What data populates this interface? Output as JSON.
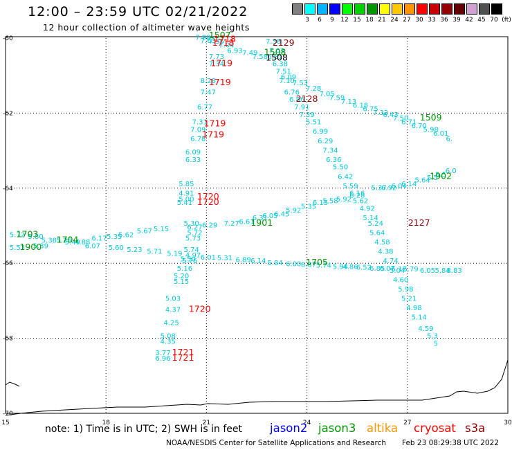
{
  "header": {
    "title": "12:00 – 23:59 UTC 02/21/2022",
    "subtitle": "12 hour collection of altimeter wave heights"
  },
  "legend": {
    "unit": "(ft)",
    "items": [
      {
        "label": "3",
        "color": "#808080"
      },
      {
        "label": "6",
        "color": "#00ffff"
      },
      {
        "label": "9",
        "color": "#00b4ff"
      },
      {
        "label": "12",
        "color": "#0000ff"
      },
      {
        "label": "15",
        "color": "#00ff00"
      },
      {
        "label": "18",
        "color": "#00d200"
      },
      {
        "label": "21",
        "color": "#009600"
      },
      {
        "label": "24",
        "color": "#ffff00"
      },
      {
        "label": "27",
        "color": "#ffc800"
      },
      {
        "label": "30",
        "color": "#ff9600"
      },
      {
        "label": "33",
        "color": "#ff0000"
      },
      {
        "label": "36",
        "color": "#c80000"
      },
      {
        "label": "39",
        "color": "#960000"
      },
      {
        "label": "42",
        "color": "#640000"
      },
      {
        "label": "45",
        "color": "#d2a0d2"
      },
      {
        "label": "70",
        "color": "#505050"
      },
      {
        "label": "",
        "color": "#000000"
      }
    ]
  },
  "map": {
    "lat_labels": [
      "-60",
      "-62",
      "-64",
      "-66",
      "-68",
      "-70"
    ],
    "lon_labels": [
      "15",
      "18",
      "21",
      "24",
      "27",
      "30"
    ],
    "wave_color": "#00c8dc",
    "lat_values": [
      -60,
      -62,
      -64,
      -66,
      -68,
      -70
    ],
    "lon_values": [
      15,
      18,
      21,
      24,
      27,
      30
    ]
  },
  "tracks": {
    "wave_labels": [
      {
        "t": "7.98",
        "lon": 20.9,
        "lat": -60.05
      },
      {
        "t": "7.63",
        "lon": 21.05,
        "lat": -60.13
      },
      {
        "t": "7.56",
        "lon": 21.3,
        "lat": -60.15
      },
      {
        "t": "7.04",
        "lon": 21.6,
        "lat": -60.25
      },
      {
        "t": "6.93",
        "lon": 21.85,
        "lat": -60.4
      },
      {
        "t": "7.49",
        "lon": 22.3,
        "lat": -60.45
      },
      {
        "t": "7.58",
        "lon": 22.6,
        "lat": -60.55
      },
      {
        "t": "7.73",
        "lon": 21.3,
        "lat": -60.55
      },
      {
        "t": "7.34",
        "lon": 21.3,
        "lat": -60.75
      },
      {
        "t": "8.28",
        "lon": 21.05,
        "lat": -61.2
      },
      {
        "t": "7.47",
        "lon": 21.05,
        "lat": -61.5
      },
      {
        "t": "6.77",
        "lon": 20.95,
        "lat": -61.9
      },
      {
        "t": "7.31",
        "lon": 20.8,
        "lat": -62.3
      },
      {
        "t": "7.09",
        "lon": 20.75,
        "lat": -62.5
      },
      {
        "t": "6.78",
        "lon": 20.75,
        "lat": -62.75
      },
      {
        "t": "6.09",
        "lon": 20.6,
        "lat": -63.1
      },
      {
        "t": "6.33",
        "lon": 20.6,
        "lat": -63.3
      },
      {
        "t": "7.38",
        "lon": 23.0,
        "lat": -60.15
      },
      {
        "t": "7.03",
        "lon": 23.1,
        "lat": -60.4
      },
      {
        "t": "6.81",
        "lon": 23.05,
        "lat": -60.55
      },
      {
        "t": "6.38",
        "lon": 23.2,
        "lat": -60.75
      },
      {
        "t": "7.51",
        "lon": 23.3,
        "lat": -60.95
      },
      {
        "t": "7.10",
        "lon": 23.4,
        "lat": -61.2
      },
      {
        "t": "6.76",
        "lon": 23.55,
        "lat": -61.5
      },
      {
        "t": "6.86",
        "lon": 23.7,
        "lat": -61.7
      },
      {
        "t": "7.91",
        "lon": 23.85,
        "lat": -61.9
      },
      {
        "t": "7.39",
        "lon": 24.0,
        "lat": -62.1
      },
      {
        "t": "5.51",
        "lon": 24.2,
        "lat": -62.3
      },
      {
        "t": "6.99",
        "lon": 24.4,
        "lat": -62.55
      },
      {
        "t": "6.29",
        "lon": 24.55,
        "lat": -62.8
      },
      {
        "t": "7.34",
        "lon": 24.7,
        "lat": -63.05
      },
      {
        "t": "6.36",
        "lon": 24.8,
        "lat": -63.3
      },
      {
        "t": "5.50",
        "lon": 25.0,
        "lat": -63.5
      },
      {
        "t": "6.42",
        "lon": 25.15,
        "lat": -63.75
      },
      {
        "t": "5.59",
        "lon": 25.3,
        "lat": -64.0
      },
      {
        "t": "6.16",
        "lon": 25.5,
        "lat": -64.2
      },
      {
        "t": "5.62",
        "lon": 25.6,
        "lat": -64.4
      },
      {
        "t": "4.92",
        "lon": 25.8,
        "lat": -64.6
      },
      {
        "t": "5.14",
        "lon": 25.9,
        "lat": -64.85
      },
      {
        "t": "5.24",
        "lon": 26.05,
        "lat": -65.0
      },
      {
        "t": "5.64",
        "lon": 26.1,
        "lat": -65.25
      },
      {
        "t": "4.58",
        "lon": 26.25,
        "lat": -65.5
      },
      {
        "t": "4.38",
        "lon": 26.35,
        "lat": -65.75
      },
      {
        "t": "4.74",
        "lon": 26.5,
        "lat": -66.0
      },
      {
        "t": "5.04",
        "lon": 26.7,
        "lat": -66.25
      },
      {
        "t": "4.60",
        "lon": 26.8,
        "lat": -66.5
      },
      {
        "t": "5.98",
        "lon": 26.95,
        "lat": -66.75
      },
      {
        "t": "5.21",
        "lon": 27.05,
        "lat": -67.0
      },
      {
        "t": "4.98",
        "lon": 27.2,
        "lat": -67.25
      },
      {
        "t": "5.14",
        "lon": 27.35,
        "lat": -67.5
      },
      {
        "t": "4.59",
        "lon": 27.55,
        "lat": -67.8
      },
      {
        "t": "5.3",
        "lon": 27.75,
        "lat": -68.0
      },
      {
        "t": "5",
        "lon": 27.85,
        "lat": -68.2
      },
      {
        "t": "6.09",
        "lon": 23.45,
        "lat": -61.1
      },
      {
        "t": "7.53",
        "lon": 23.8,
        "lat": -61.25
      },
      {
        "t": "7.28",
        "lon": 24.2,
        "lat": -61.4
      },
      {
        "t": "7.05",
        "lon": 24.6,
        "lat": -61.55
      },
      {
        "t": "7.59",
        "lon": 24.9,
        "lat": -61.65
      },
      {
        "t": "7.13",
        "lon": 25.25,
        "lat": -61.75
      },
      {
        "t": "6.18",
        "lon": 25.6,
        "lat": -61.85
      },
      {
        "t": "6.75",
        "lon": 25.9,
        "lat": -61.95
      },
      {
        "t": "7.32",
        "lon": 26.2,
        "lat": -62.05
      },
      {
        "t": "6.43",
        "lon": 26.5,
        "lat": -62.1
      },
      {
        "t": "7.50",
        "lon": 26.8,
        "lat": -62.2
      },
      {
        "t": "6.71",
        "lon": 27.05,
        "lat": -62.3
      },
      {
        "t": "6.70",
        "lon": 27.35,
        "lat": -62.4
      },
      {
        "t": "5.98",
        "lon": 27.7,
        "lat": -62.5
      },
      {
        "t": "6.01",
        "lon": 28.0,
        "lat": -62.6
      },
      {
        "t": "6.",
        "lon": 28.25,
        "lat": -62.75
      },
      {
        "t": "6.0",
        "lon": 28.3,
        "lat": -63.6
      },
      {
        "t": "5.5",
        "lon": 28.0,
        "lat": -63.7
      },
      {
        "t": "5.5",
        "lon": 27.75,
        "lat": -63.78
      },
      {
        "t": "5.64",
        "lon": 27.45,
        "lat": -63.85
      },
      {
        "t": "6.14",
        "lon": 27.05,
        "lat": -63.95
      },
      {
        "t": "6.04",
        "lon": 26.75,
        "lat": -64.0
      },
      {
        "t": "6.92",
        "lon": 26.45,
        "lat": -64.05
      },
      {
        "t": "5.37",
        "lon": 26.15,
        "lat": -64.05
      },
      {
        "t": "6.28",
        "lon": 25.5,
        "lat": -64.25
      },
      {
        "t": "5.92",
        "lon": 25.1,
        "lat": -64.35
      },
      {
        "t": "5.58",
        "lon": 24.7,
        "lat": -64.4
      },
      {
        "t": "6.15",
        "lon": 24.4,
        "lat": -64.45
      },
      {
        "t": "5.35",
        "lon": 24.05,
        "lat": -64.55
      },
      {
        "t": "5.92",
        "lon": 23.6,
        "lat": -64.65
      },
      {
        "t": "6.45",
        "lon": 23.25,
        "lat": -64.75
      },
      {
        "t": "6.05",
        "lon": 22.9,
        "lat": -64.8
      },
      {
        "t": "6.31",
        "lon": 22.6,
        "lat": -64.85
      },
      {
        "t": "6.61",
        "lon": 22.2,
        "lat": -64.95
      },
      {
        "t": "7.27",
        "lon": 21.75,
        "lat": -65.0
      },
      {
        "t": "6.29",
        "lon": 21.1,
        "lat": -65.05
      },
      {
        "t": "5.85",
        "lon": 20.4,
        "lat": -63.95
      },
      {
        "t": "4.91",
        "lon": 20.4,
        "lat": -64.2
      },
      {
        "t": "5.00",
        "lon": 20.4,
        "lat": -64.35
      },
      {
        "t": "5.41",
        "lon": 20.35,
        "lat": -64.45
      },
      {
        "t": "5.30",
        "lon": 20.55,
        "lat": -65.0
      },
      {
        "t": "6.27",
        "lon": 20.65,
        "lat": -65.1
      },
      {
        "t": "5.72",
        "lon": 20.65,
        "lat": -65.25
      },
      {
        "t": "5.73",
        "lon": 20.6,
        "lat": -65.4
      },
      {
        "t": "5.74",
        "lon": 20.55,
        "lat": -65.7
      },
      {
        "t": "5.50",
        "lon": 20.45,
        "lat": -65.95
      },
      {
        "t": "5.76",
        "lon": 20.5,
        "lat": -66.0
      },
      {
        "t": "5.16",
        "lon": 20.35,
        "lat": -66.2
      },
      {
        "t": "5.20",
        "lon": 20.25,
        "lat": -66.4
      },
      {
        "t": "5.15",
        "lon": 20.25,
        "lat": -66.55
      },
      {
        "t": "5.03",
        "lon": 20.0,
        "lat": -67.0
      },
      {
        "t": "4.37",
        "lon": 20.0,
        "lat": -67.3
      },
      {
        "t": "4.25",
        "lon": 19.95,
        "lat": -67.65
      },
      {
        "t": "5.08",
        "lon": 19.85,
        "lat": -68.0
      },
      {
        "t": "4.35",
        "lon": 19.85,
        "lat": -68.15
      },
      {
        "t": "3.77",
        "lon": 19.7,
        "lat": -68.45
      },
      {
        "t": "6.96",
        "lon": 19.7,
        "lat": -68.6
      },
      {
        "t": "5.72",
        "lon": 15.35,
        "lat": -65.3
      },
      {
        "t": "5.53",
        "lon": 15.35,
        "lat": -65.65
      },
      {
        "t": "5.80",
        "lon": 15.9,
        "lat": -65.35
      },
      {
        "t": "5.38",
        "lon": 16.3,
        "lat": -65.45
      },
      {
        "t": "5.25",
        "lon": 16.75,
        "lat": -65.45
      },
      {
        "t": "5.49",
        "lon": 17.0,
        "lat": -65.5
      },
      {
        "t": "4.88",
        "lon": 17.3,
        "lat": -65.5
      },
      {
        "t": "6.17",
        "lon": 17.8,
        "lat": -65.4
      },
      {
        "t": "5.35",
        "lon": 18.25,
        "lat": -65.35
      },
      {
        "t": "5.62",
        "lon": 18.6,
        "lat": -65.3
      },
      {
        "t": "5.67",
        "lon": 19.15,
        "lat": -65.2
      },
      {
        "t": "5.15",
        "lon": 19.65,
        "lat": -65.15
      },
      {
        "t": "5.39",
        "lon": 16.05,
        "lat": -65.6
      },
      {
        "t": "6.07",
        "lon": 17.6,
        "lat": -65.6
      },
      {
        "t": "5.60",
        "lon": 18.3,
        "lat": -65.65
      },
      {
        "t": "5.23",
        "lon": 18.85,
        "lat": -65.7
      },
      {
        "t": "5.71",
        "lon": 19.45,
        "lat": -65.75
      },
      {
        "t": "5.19",
        "lon": 20.05,
        "lat": -65.8
      },
      {
        "t": "4.97",
        "lon": 20.6,
        "lat": -65.85
      },
      {
        "t": "6.01",
        "lon": 21.05,
        "lat": -65.9
      },
      {
        "t": "5.31",
        "lon": 21.55,
        "lat": -65.92
      },
      {
        "t": "6.89",
        "lon": 22.1,
        "lat": -65.97
      },
      {
        "t": "6.14",
        "lon": 22.55,
        "lat": -66.0
      },
      {
        "t": "5.84",
        "lon": 23.05,
        "lat": -66.05
      },
      {
        "t": "6.00",
        "lon": 23.6,
        "lat": -66.08
      },
      {
        "t": "6.87",
        "lon": 24.05,
        "lat": -66.1
      },
      {
        "t": "5.74",
        "lon": 24.5,
        "lat": -66.12
      },
      {
        "t": "5.94",
        "lon": 25.0,
        "lat": -66.15
      },
      {
        "t": "4.86",
        "lon": 25.3,
        "lat": -66.15
      },
      {
        "t": "6.52",
        "lon": 25.7,
        "lat": -66.17
      },
      {
        "t": "6.85",
        "lon": 26.1,
        "lat": -66.2
      },
      {
        "t": "6.07",
        "lon": 26.4,
        "lat": -66.2
      },
      {
        "t": "5.12",
        "lon": 26.75,
        "lat": -66.22
      },
      {
        "t": "5.79",
        "lon": 27.1,
        "lat": -66.22
      },
      {
        "t": "6.05",
        "lon": 27.6,
        "lat": -66.25
      },
      {
        "t": "5.84",
        "lon": 28.05,
        "lat": -66.25
      },
      {
        "t": "8.83",
        "lon": 28.4,
        "lat": -66.25
      }
    ],
    "time_labels": [
      {
        "t": "1507",
        "lon": 21.4,
        "lat": -60.0,
        "c": "#009600"
      },
      {
        "t": "1718",
        "lon": 21.55,
        "lat": -60.1,
        "c": "#ff0000"
      },
      {
        "t": "1718",
        "lon": 21.5,
        "lat": -60.2,
        "c": "#ff0000"
      },
      {
        "t": "2129",
        "lon": 23.3,
        "lat": -60.2,
        "c": "#8b0000"
      },
      {
        "t": "1508",
        "lon": 23.05,
        "lat": -60.45,
        "c": "#009600"
      },
      {
        "t": "1508",
        "lon": 23.1,
        "lat": -60.6,
        "c": "#000000"
      },
      {
        "t": "1719",
        "lon": 21.45,
        "lat": -60.75,
        "c": "#ff0000"
      },
      {
        "t": "1719",
        "lon": 21.4,
        "lat": -61.25,
        "c": "#ff0000"
      },
      {
        "t": "2128",
        "lon": 24.0,
        "lat": -61.7,
        "c": "#8b0000"
      },
      {
        "t": "1509",
        "lon": 27.7,
        "lat": -62.2,
        "c": "#009600"
      },
      {
        "t": "1719",
        "lon": 21.25,
        "lat": -62.35,
        "c": "#ff0000"
      },
      {
        "t": "1719",
        "lon": 21.2,
        "lat": -62.65,
        "c": "#ff0000"
      },
      {
        "t": "1902",
        "lon": 28.0,
        "lat": -63.75,
        "c": "#009600"
      },
      {
        "t": "1720",
        "lon": 21.05,
        "lat": -64.3,
        "c": "#ff0000"
      },
      {
        "t": "1720",
        "lon": 21.05,
        "lat": -64.45,
        "c": "#ff0000"
      },
      {
        "t": "1901",
        "lon": 22.65,
        "lat": -65.0,
        "c": "#009600"
      },
      {
        "t": "2127",
        "lon": 27.35,
        "lat": -65.0,
        "c": "#8b0000"
      },
      {
        "t": "1703",
        "lon": 15.65,
        "lat": -65.3,
        "c": "#009600"
      },
      {
        "t": "1704",
        "lon": 16.85,
        "lat": -65.45,
        "c": "#009600"
      },
      {
        "t": "1900",
        "lon": 15.75,
        "lat": -65.65,
        "c": "#009600"
      },
      {
        "t": "1705",
        "lon": 24.3,
        "lat": -66.05,
        "c": "#009600"
      },
      {
        "t": "1720",
        "lon": 20.8,
        "lat": -67.3,
        "c": "#ff0000"
      },
      {
        "t": "1721",
        "lon": 20.3,
        "lat": -68.45,
        "c": "#ff0000"
      },
      {
        "t": "1721",
        "lon": 20.3,
        "lat": -68.6,
        "c": "#ff0000"
      }
    ]
  },
  "footer": {
    "note": "note:  1) Time is in UTC;  2) SWH is in feet",
    "satellites": [
      {
        "name": "jason2",
        "color": "#0000ff"
      },
      {
        "name": "jason3",
        "color": "#009600"
      },
      {
        "name": "altika",
        "color": "#ff9600"
      },
      {
        "name": "cryosat",
        "color": "#ff0000"
      },
      {
        "name": "s3a",
        "color": "#8b0000"
      }
    ],
    "credit": "NOAA/NESDIS Center for Satellite Applications and Research",
    "timestamp": "Feb 23 08:29:38 UTC 2022"
  }
}
